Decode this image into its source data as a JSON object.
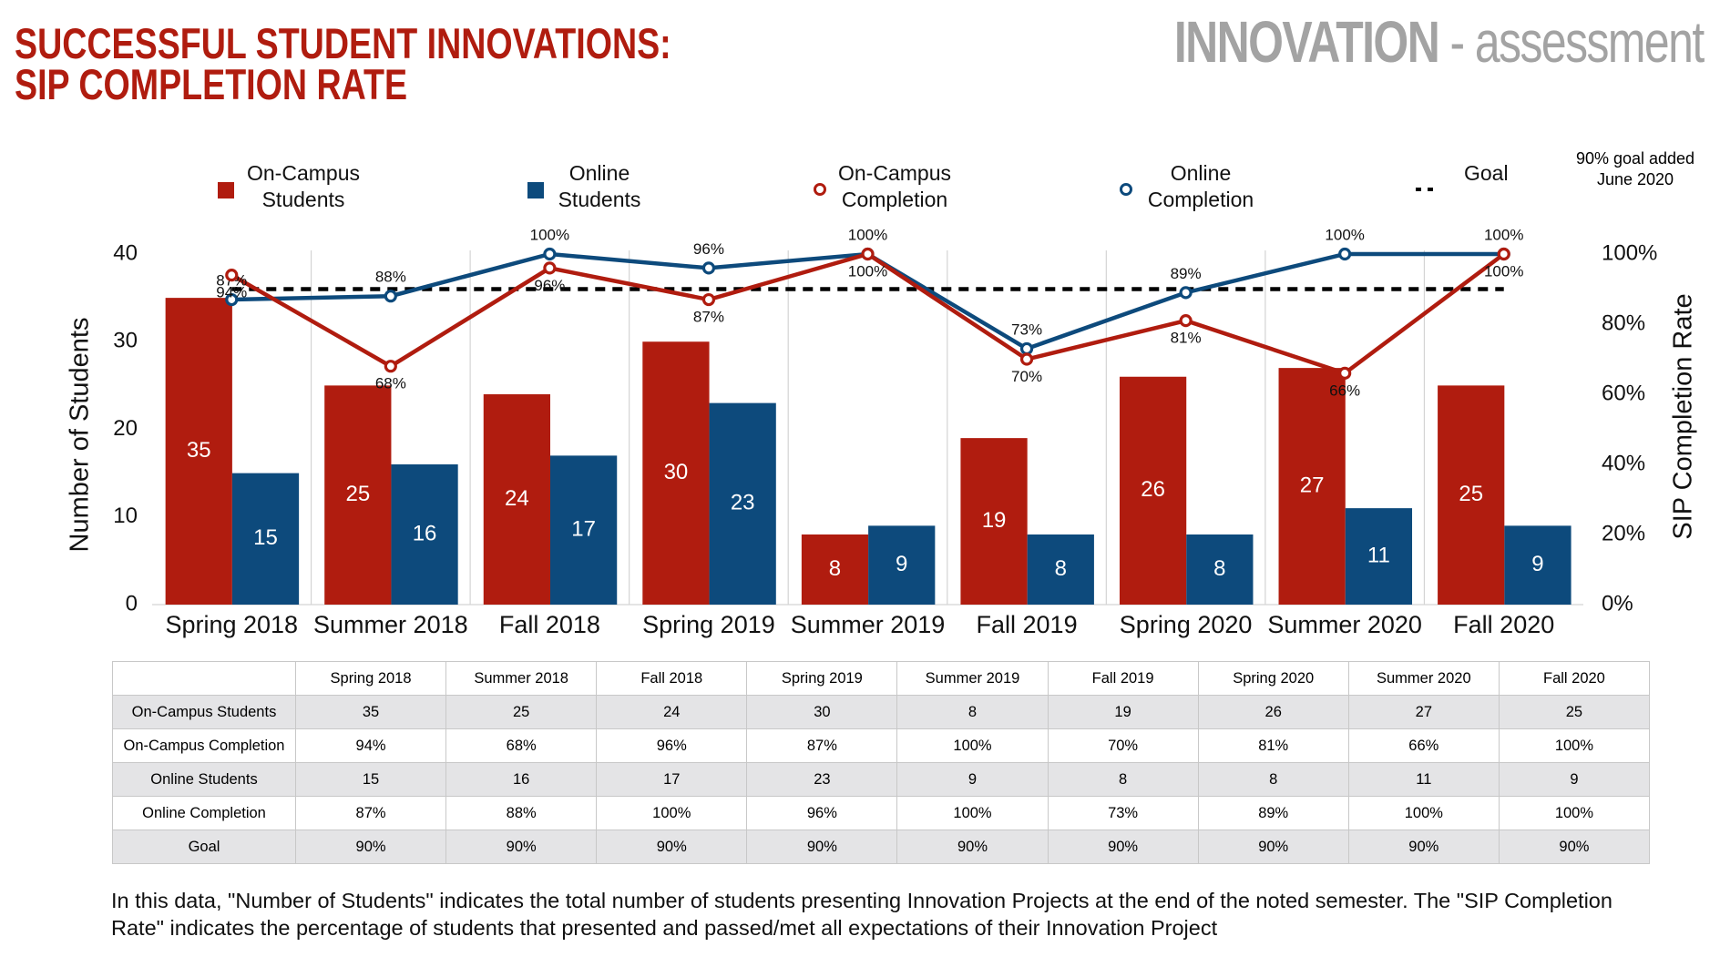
{
  "header": {
    "title_lines": [
      "SUCCESSFUL STUDENT INNOVATIONS:",
      "SIP COMPLETION RATE"
    ],
    "tag_main": "INNOVATION",
    "tag_sub": "- assessment"
  },
  "chart_data": {
    "type": "bar",
    "categories": [
      "Spring 2018",
      "Summer 2018",
      "Fall 2018",
      "Spring 2019",
      "Summer 2019",
      "Fall 2019",
      "Spring 2020",
      "Summer 2020",
      "Fall 2020"
    ],
    "series": [
      {
        "name": "On-Campus Students",
        "type": "bar",
        "color": "#b01c0f",
        "values": [
          35,
          25,
          24,
          30,
          8,
          19,
          26,
          27,
          25
        ]
      },
      {
        "name": "Online Students",
        "type": "bar",
        "color": "#0d4a7c",
        "values": [
          15,
          16,
          17,
          23,
          9,
          8,
          8,
          11,
          9
        ]
      },
      {
        "name": "On-Campus Completion",
        "type": "line",
        "axis": "y2",
        "marker": "circle",
        "color": "#b01c0f",
        "values": [
          94,
          68,
          96,
          87,
          100,
          70,
          81,
          66,
          100
        ],
        "value_labels": [
          "94%",
          "68%",
          "96%",
          "87%",
          "100%",
          "70%",
          "81%",
          "66%",
          "100%"
        ]
      },
      {
        "name": "Online Completion",
        "type": "line",
        "axis": "y2",
        "marker": "circle",
        "color": "#0d4a7c",
        "values": [
          87,
          88,
          100,
          96,
          100,
          73,
          89,
          100,
          100
        ],
        "value_labels": [
          "87%",
          "88%",
          "100%",
          "96%",
          "100%",
          "73%",
          "89%",
          "100%",
          "100%"
        ]
      },
      {
        "name": "Goal",
        "type": "line",
        "axis": "y2",
        "dashed": true,
        "color": "#000000",
        "values": [
          90,
          90,
          90,
          90,
          90,
          90,
          90,
          90,
          90
        ]
      }
    ],
    "ylabel": "Number of Students",
    "y2label": "SIP Completion Rate",
    "ylim": [
      0,
      40
    ],
    "yticks": [
      0,
      10,
      20,
      30,
      40
    ],
    "y2lim": [
      0,
      100
    ],
    "y2ticks": [
      {
        "value": 0,
        "label": "0%"
      },
      {
        "value": 20,
        "label": "20%"
      },
      {
        "value": 40,
        "label": "40%"
      },
      {
        "value": 60,
        "label": "60%"
      },
      {
        "value": 80,
        "label": "80%"
      },
      {
        "value": 100,
        "label": "100%"
      }
    ],
    "annotation": "90% goal added June 2020",
    "legend": "top",
    "grid": false
  },
  "table": {
    "columns": [
      "Spring 2018",
      "Summer 2018",
      "Fall 2018",
      "Spring 2019",
      "Summer 2019",
      "Fall 2019",
      "Spring 2020",
      "Summer 2020",
      "Fall 2020"
    ],
    "rows": [
      {
        "label": "On-Campus Students",
        "cells": [
          "35",
          "25",
          "24",
          "30",
          "8",
          "19",
          "26",
          "27",
          "25"
        ]
      },
      {
        "label": "On-Campus Completion",
        "cells": [
          "94%",
          "68%",
          "96%",
          "87%",
          "100%",
          "70%",
          "81%",
          "66%",
          "100%"
        ]
      },
      {
        "label": "Online Students",
        "cells": [
          "15",
          "16",
          "17",
          "23",
          "9",
          "8",
          "8",
          "11",
          "9"
        ]
      },
      {
        "label": "Online Completion",
        "cells": [
          "87%",
          "88%",
          "100%",
          "96%",
          "100%",
          "73%",
          "89%",
          "100%",
          "100%"
        ]
      },
      {
        "label": "Goal",
        "cells": [
          "90%",
          "90%",
          "90%",
          "90%",
          "90%",
          "90%",
          "90%",
          "90%",
          "90%"
        ]
      }
    ]
  },
  "note": "In this data, \"Number of Students\" indicates the total number of students presenting Innovation Projects at the end of the noted semester. The \"SIP Completion Rate\" indicates the percentage of students that presented and passed/met all expectations of their Innovation Project"
}
